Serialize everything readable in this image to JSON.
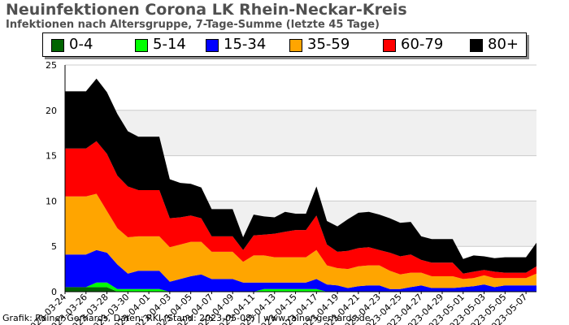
{
  "header": {
    "title": "Neuinfektionen Corona LK Rhein-Neckar-Kreis",
    "subtitle": "Infektionen nach Altersgruppe, 7-Tage-Summe (letzte 45 Tage)"
  },
  "footer": {
    "credit": "Grafik: Rainer Gerhards, Daten: RKI (Stand: 2023-05-08) | www.rainer-gerhards.de"
  },
  "colors": {
    "band": "#f0f0f0",
    "grid": "#cccccc",
    "axis": "#000000"
  },
  "chart_data": {
    "type": "area",
    "stacked": true,
    "ylim": [
      0,
      25
    ],
    "yticks": [
      0,
      5,
      10,
      15,
      20,
      25
    ],
    "grid": true,
    "legend_position": "top",
    "x": [
      "2023-03-24",
      "2023-03-25",
      "2023-03-26",
      "2023-03-27",
      "2023-03-28",
      "2023-03-29",
      "2023-03-30",
      "2023-03-31",
      "2023-04-01",
      "2023-04-02",
      "2023-04-03",
      "2023-04-04",
      "2023-04-05",
      "2023-04-06",
      "2023-04-07",
      "2023-04-08",
      "2023-04-09",
      "2023-04-10",
      "2023-04-11",
      "2023-04-12",
      "2023-04-13",
      "2023-04-14",
      "2023-04-15",
      "2023-04-16",
      "2023-04-17",
      "2023-04-18",
      "2023-04-19",
      "2023-04-20",
      "2023-04-21",
      "2023-04-22",
      "2023-04-23",
      "2023-04-24",
      "2023-04-25",
      "2023-04-26",
      "2023-04-27",
      "2023-04-28",
      "2023-04-29",
      "2023-04-30",
      "2023-05-01",
      "2023-05-02",
      "2023-05-03",
      "2023-05-04",
      "2023-05-05",
      "2023-05-06",
      "2023-05-07",
      "2023-05-08"
    ],
    "x_tick_labels": [
      "2023-03-24",
      "2023-03-26",
      "2023-03-28",
      "2023-03-30",
      "2023-04-01",
      "2023-04-03",
      "2023-04-05",
      "2023-04-07",
      "2023-04-09",
      "2023-04-11",
      "2023-04-13",
      "2023-04-15",
      "2023-04-17",
      "2023-04-19",
      "2023-04-21",
      "2023-04-23",
      "2023-04-25",
      "2023-04-27",
      "2023-04-29",
      "2023-05-01",
      "2023-05-03",
      "2023-05-05",
      "2023-05-07"
    ],
    "series": [
      {
        "name": "0-4",
        "color": "#006400",
        "values": [
          0.5,
          0.5,
          0.5,
          0.5,
          0.5,
          0,
          0,
          0,
          0,
          0,
          0,
          0,
          0,
          0,
          0,
          0,
          0,
          0,
          0,
          0,
          0,
          0,
          0,
          0,
          0,
          0,
          0,
          0,
          0,
          0,
          0,
          0,
          0,
          0,
          0,
          0,
          0,
          0,
          0,
          0,
          0,
          0,
          0,
          0,
          0,
          0
        ]
      },
      {
        "name": "5-14",
        "color": "#00ff00",
        "values": [
          0,
          0,
          0,
          0.5,
          0.5,
          0.3,
          0.3,
          0.3,
          0.3,
          0.3,
          0,
          0,
          0,
          0,
          0,
          0,
          0,
          0,
          0,
          0.3,
          0.3,
          0.3,
          0.3,
          0.3,
          0.3,
          0,
          0,
          0,
          0,
          0,
          0,
          0,
          0,
          0,
          0,
          0,
          0,
          0,
          0,
          0,
          0,
          0,
          0,
          0,
          0,
          0
        ]
      },
      {
        "name": "15-34",
        "color": "#0000ff",
        "values": [
          3.6,
          3.6,
          3.6,
          3.6,
          3.3,
          2.7,
          1.7,
          2,
          2,
          2,
          1.1,
          1.4,
          1.7,
          1.9,
          1.4,
          1.4,
          1.4,
          1,
          1,
          0.7,
          0.7,
          0.7,
          0.7,
          0.7,
          1.1,
          0.8,
          0.7,
          0.4,
          0.6,
          0.7,
          0.7,
          0.3,
          0.3,
          0.5,
          0.7,
          0.4,
          0.4,
          0.4,
          0.5,
          0.6,
          0.8,
          0.5,
          0.7,
          0.7,
          0.7,
          0.7
        ]
      },
      {
        "name": "35-59",
        "color": "#ffa500",
        "values": [
          6.4,
          6.4,
          6.4,
          6.2,
          4.6,
          4,
          4,
          3.8,
          3.8,
          3.8,
          3.8,
          3.8,
          3.8,
          3.6,
          3,
          3,
          3,
          2.3,
          3,
          3,
          2.8,
          2.8,
          2.8,
          2.8,
          3.2,
          2.1,
          1.9,
          2.1,
          2.2,
          2.2,
          2.2,
          2,
          1.6,
          1.6,
          1.4,
          1.3,
          1.3,
          1.3,
          0.9,
          0.9,
          1,
          1,
          0.8,
          0.8,
          0.8,
          1.3
        ]
      },
      {
        "name": "60-79",
        "color": "#ff0000",
        "values": [
          5.3,
          5.3,
          5.3,
          5.8,
          6.3,
          5.8,
          5.6,
          5.1,
          5.1,
          5.1,
          3.2,
          3,
          2.9,
          2.6,
          1.7,
          1.7,
          1.7,
          1.3,
          2.2,
          2.3,
          2.6,
          2.8,
          3,
          3,
          3.8,
          2.3,
          1.8,
          2,
          2,
          2,
          1.7,
          2,
          2,
          2,
          1.4,
          1.5,
          1.5,
          1.5,
          0.6,
          0.7,
          0.6,
          0.7,
          0.6,
          0.6,
          0.6,
          0.8
        ]
      },
      {
        "name": "80+",
        "color": "#000000",
        "values": [
          6.3,
          6.3,
          6.3,
          6.9,
          6.8,
          6.8,
          6.1,
          5.9,
          5.9,
          5.9,
          4.3,
          3.8,
          3.5,
          3.4,
          3,
          3,
          3,
          1.4,
          2.3,
          2,
          1.8,
          2.2,
          1.8,
          1.8,
          3.2,
          2.6,
          2.8,
          3.5,
          3.9,
          3.9,
          3.9,
          3.8,
          3.7,
          3.6,
          2.6,
          2.6,
          2.6,
          2.6,
          1.6,
          1.8,
          1.5,
          1.5,
          1.7,
          1.7,
          1.7,
          2.6
        ]
      }
    ]
  }
}
